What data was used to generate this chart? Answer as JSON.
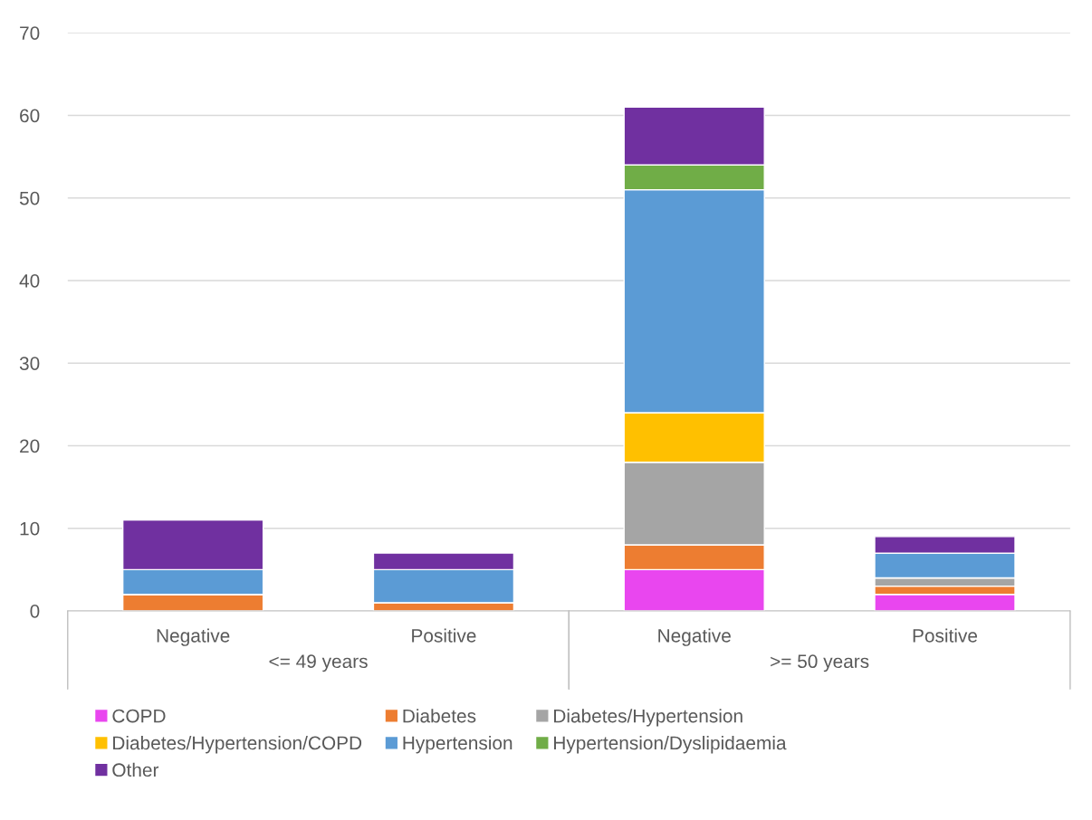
{
  "chart_data": {
    "type": "bar",
    "stacked": true,
    "categories": [
      "Negative",
      "Positive",
      "Negative",
      "Positive"
    ],
    "series": [
      {
        "name": "COPD",
        "color": "#e946ef",
        "values": [
          0,
          0,
          5,
          2
        ]
      },
      {
        "name": "Diabetes",
        "color": "#ed7d31",
        "values": [
          2,
          1,
          3,
          1
        ]
      },
      {
        "name": "Diabetes/Hypertension",
        "color": "#a5a5a5",
        "values": [
          0,
          0,
          10,
          1
        ]
      },
      {
        "name": "Diabetes/Hypertension/COPD",
        "color": "#ffc000",
        "values": [
          0,
          0,
          6,
          0
        ]
      },
      {
        "name": "Hypertension",
        "color": "#5b9bd5",
        "values": [
          3,
          4,
          27,
          3
        ]
      },
      {
        "name": "Hypertension/Dyslipidaemia",
        "color": "#70ad47",
        "values": [
          0,
          0,
          3,
          0
        ]
      },
      {
        "name": "Other",
        "color": "#7030a0",
        "values": [
          6,
          2,
          7,
          2
        ]
      }
    ],
    "ylim": [
      0,
      70
    ],
    "yticks": [
      0,
      10,
      20,
      30,
      40,
      50,
      60,
      70
    ],
    "grid": "y",
    "legend": "bottom",
    "annotations": [
      "<= 49 years",
      ">= 50 years"
    ]
  }
}
